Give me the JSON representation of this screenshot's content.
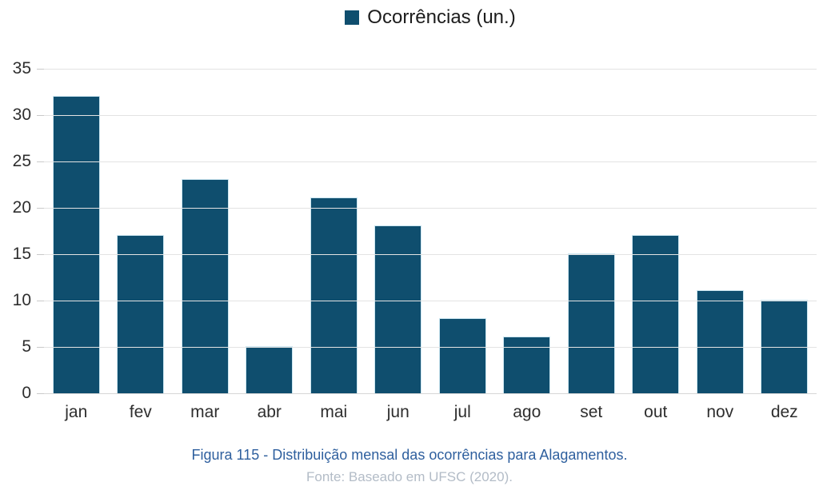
{
  "chart_data": {
    "type": "bar",
    "title": "",
    "legend": [
      "Ocorrências (un.)"
    ],
    "legend_position": "top-center",
    "categories": [
      "jan",
      "fev",
      "mar",
      "abr",
      "mai",
      "jun",
      "jul",
      "ago",
      "set",
      "out",
      "nov",
      "dez"
    ],
    "values": [
      32,
      17,
      23,
      5,
      21,
      18,
      8,
      6,
      15,
      17,
      11,
      10
    ],
    "xlabel": "",
    "ylabel": "",
    "ylim": [
      0,
      35
    ],
    "ytick_step": 5,
    "grid": true
  },
  "caption": {
    "title": "Figura 115 - Distribuição mensal das ocorrências para Alagamentos.",
    "source": "Fonte: Baseado em UFSC (2020)."
  },
  "colors": {
    "bar": "#0F4E6E",
    "grid": "#e3e3e3",
    "baseline": "#d7d7d7",
    "tick": "#c9c9c9",
    "axis_text": "#2e2e2e",
    "caption_title": "#2E5F9E",
    "caption_source": "#B3BCC7",
    "legend_text": "#1c1c1c"
  }
}
